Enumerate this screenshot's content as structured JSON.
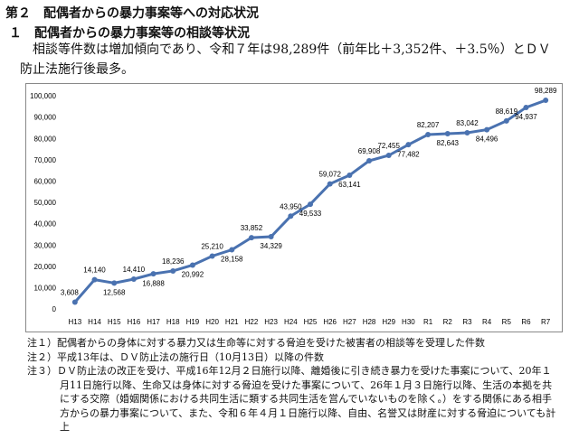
{
  "header": {
    "section": "第２　配偶者からの暴力事案等への対応状況",
    "subsection": "１　配偶者からの暴力事案等の相談等状況",
    "summary": "相談等件数は増加傾向であり、令和７年は98,289件（前年比＋3,352件、＋3.5％）とＤＶ防止法施行後最多。"
  },
  "chart_data": {
    "type": "line",
    "categories": [
      "H13",
      "H14",
      "H15",
      "H16",
      "H17",
      "H18",
      "H19",
      "H20",
      "H21",
      "H22",
      "H23",
      "H24",
      "H25",
      "H26",
      "H27",
      "H28",
      "H29",
      "H30",
      "R1",
      "R2",
      "R3",
      "R4",
      "R5",
      "R6",
      "R7"
    ],
    "series": [
      {
        "color": "#4a72b0",
        "values": [
          3608,
          14140,
          12568,
          14410,
          16888,
          18236,
          20992,
          25210,
          28158,
          33852,
          34329,
          43950,
          49533,
          59072,
          63141,
          69908,
          72455,
          77482,
          82207,
          82643,
          83042,
          84496,
          88619,
          94937,
          98289
        ],
        "value_labels": [
          "3,608",
          "14,140",
          "12,568",
          "14,410",
          "16,888",
          "18,236",
          "20,992",
          "25,210",
          "28,158",
          "33,852",
          "34,329",
          "43,950",
          "49,533",
          "59,072",
          "63,141",
          "69,908",
          "72,455",
          "77,482",
          "82,207",
          "82,643",
          "83,042",
          "84,496",
          "88,619",
          "94,937",
          "98,289"
        ]
      }
    ],
    "ylim": [
      0,
      100000
    ],
    "yticks": [
      0,
      {
        "value": 10000,
        "label": "10,000"
      },
      {
        "value": 20000,
        "label": "20,000"
      },
      {
        "value": 30000,
        "label": "30,000"
      },
      {
        "value": 40000,
        "label": "40,000"
      },
      {
        "value": 50000,
        "label": "50,000"
      },
      {
        "value": 60000,
        "label": "60,000"
      },
      {
        "value": 70000,
        "label": "70,000"
      },
      {
        "value": 80000,
        "label": "80,000"
      },
      {
        "value": 90000,
        "label": "90,000"
      },
      {
        "value": 100000,
        "label": "100,000"
      }
    ],
    "grid": false
  },
  "notes": [
    "注１）配偶者からの身体に対する暴力又は生命等に対する脅迫を受けた被害者の相談等を受理した件数",
    "注２）平成13年は、ＤＶ防止法の施行日（10月13日）以降の件数",
    "注３）ＤＶ防止法の改正を受け、平成16年12月２日施行以降、離婚後に引き続き暴力を受けた事案について、20年１月11日施行以降、生命又は身体に対する脅迫を受けた事案について、26年１月３日施行以降、生活の本拠を共にする交際（婚姻関係における共同生活に類する共同生活を営んでいないものを除く。）をする関係にある相手方からの暴力事案について、また、令和６年４月１日施行以降、自由、名誉又は財産に対する脅迫についても計上"
  ]
}
